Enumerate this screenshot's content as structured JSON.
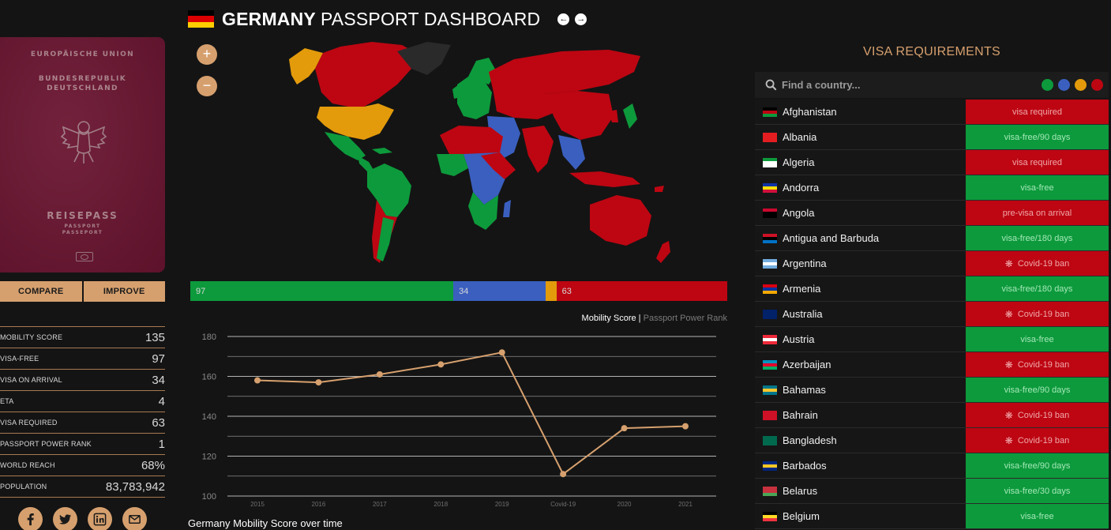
{
  "header": {
    "title_bold": "GERMANY",
    "title_light": "PASSPORT DASHBOARD",
    "prev_icon": "arrow-left-icon",
    "next_icon": "arrow-right-icon"
  },
  "passport": {
    "line1": "EUROPÄISCHE UNION",
    "line2": "BUNDESREPUBLIK",
    "line3": "DEUTSCHLAND",
    "line4": "REISEPASS",
    "line5": "PASSPORT",
    "line6": "PASSEPORT"
  },
  "buttons": {
    "compare": "COMPARE",
    "improve": "IMPROVE"
  },
  "stats": [
    {
      "label": "MOBILITY SCORE",
      "value": "135"
    },
    {
      "label": "VISA-FREE",
      "value": "97"
    },
    {
      "label": "VISA ON ARRIVAL",
      "value": "34"
    },
    {
      "label": "ETA",
      "value": "4"
    },
    {
      "label": "VISA REQUIRED",
      "value": "63"
    },
    {
      "label": "PASSPORT POWER RANK",
      "value": "1"
    },
    {
      "label": "WORLD REACH",
      "value": "68%"
    },
    {
      "label": "POPULATION",
      "value": "83,783,942"
    }
  ],
  "socials": [
    "facebook-icon",
    "twitter-icon",
    "linkedin-icon",
    "email-icon"
  ],
  "map": {
    "zoom_in": "+",
    "zoom_out": "−"
  },
  "breakdown": [
    {
      "value": "97",
      "count": 97,
      "color": "#0d9a3c"
    },
    {
      "value": "34",
      "count": 34,
      "color": "#3a5fbf"
    },
    {
      "value": "",
      "count": 4,
      "color": "#e39b0b"
    },
    {
      "value": "63",
      "count": 63,
      "color": "#bd0612"
    }
  ],
  "chart_toggle": {
    "active": "Mobility Score",
    "separator": " | ",
    "inactive": "Passport Power Rank"
  },
  "chart_caption": "Germany Mobility Score over time",
  "chart_data": {
    "type": "line",
    "title": "Germany Mobility Score over time",
    "xlabel": "",
    "ylabel": "",
    "categories": [
      "2015",
      "2016",
      "2017",
      "2018",
      "2019",
      "Covid-19",
      "2020",
      "2021"
    ],
    "series": [
      {
        "values": [
          158,
          157,
          161,
          166,
          172,
          111,
          134,
          135
        ]
      }
    ],
    "ylim": [
      100,
      180
    ],
    "yticks": [
      "100",
      "120",
      "140",
      "160",
      "180"
    ],
    "grid": true,
    "color": "#d6a06e"
  },
  "visa": {
    "title": "VISA REQUIREMENTS",
    "search_placeholder": "Find a country...",
    "search_icon": "search-icon",
    "filter_colors": [
      "#0d9a3c",
      "#3a5fbf",
      "#e39b0b",
      "#bd0612"
    ],
    "countries": [
      {
        "name": "Afghanistan",
        "status": "visa required",
        "type": "red",
        "flag": [
          "#000000",
          "#bd0612",
          "#0d9a3c"
        ]
      },
      {
        "name": "Albania",
        "status": "visa-free/90 days",
        "type": "green",
        "flag": [
          "#e41e20",
          "#e41e20",
          "#e41e20"
        ]
      },
      {
        "name": "Algeria",
        "status": "visa required",
        "type": "red",
        "flag": [
          "#0d9a3c",
          "#ffffff",
          "#ffffff"
        ]
      },
      {
        "name": "Andorra",
        "status": "visa-free",
        "type": "green",
        "flag": [
          "#1034a6",
          "#fedf00",
          "#d0103a"
        ]
      },
      {
        "name": "Angola",
        "status": "pre-visa on arrival",
        "type": "red",
        "flag": [
          "#cc092f",
          "#000000",
          "#000000"
        ]
      },
      {
        "name": "Antigua and Barbuda",
        "status": "visa-free/180 days",
        "type": "green",
        "flag": [
          "#ce1126",
          "#000000",
          "#0072c6"
        ]
      },
      {
        "name": "Argentina",
        "status": "Covid-19 ban",
        "type": "red",
        "covid": true,
        "flag": [
          "#74acdf",
          "#ffffff",
          "#74acdf"
        ]
      },
      {
        "name": "Armenia",
        "status": "visa-free/180 days",
        "type": "green",
        "flag": [
          "#d90012",
          "#0033a0",
          "#f2a800"
        ]
      },
      {
        "name": "Australia",
        "status": "Covid-19 ban",
        "type": "red",
        "covid": true,
        "flag": [
          "#012169",
          "#012169",
          "#012169"
        ]
      },
      {
        "name": "Austria",
        "status": "visa-free",
        "type": "green",
        "flag": [
          "#ed2939",
          "#ffffff",
          "#ed2939"
        ]
      },
      {
        "name": "Azerbaijan",
        "status": "Covid-19 ban",
        "type": "red",
        "covid": true,
        "flag": [
          "#0092bc",
          "#e4002b",
          "#00af66"
        ]
      },
      {
        "name": "Bahamas",
        "status": "visa-free/90 days",
        "type": "green",
        "flag": [
          "#00778b",
          "#ffc72c",
          "#00778b"
        ]
      },
      {
        "name": "Bahrain",
        "status": "Covid-19 ban",
        "type": "red",
        "covid": true,
        "flag": [
          "#ce1126",
          "#ce1126",
          "#ce1126"
        ]
      },
      {
        "name": "Bangladesh",
        "status": "Covid-19 ban",
        "type": "red",
        "covid": true,
        "flag": [
          "#006a4e",
          "#006a4e",
          "#006a4e"
        ]
      },
      {
        "name": "Barbados",
        "status": "visa-free/90 days",
        "type": "green",
        "flag": [
          "#00267f",
          "#ffc726",
          "#00267f"
        ]
      },
      {
        "name": "Belarus",
        "status": "visa-free/30 days",
        "type": "green",
        "flag": [
          "#c8313e",
          "#c8313e",
          "#4aa657"
        ]
      },
      {
        "name": "Belgium",
        "status": "visa-free",
        "type": "green",
        "flag": [
          "#000000",
          "#fdda24",
          "#ef3340"
        ]
      }
    ]
  }
}
